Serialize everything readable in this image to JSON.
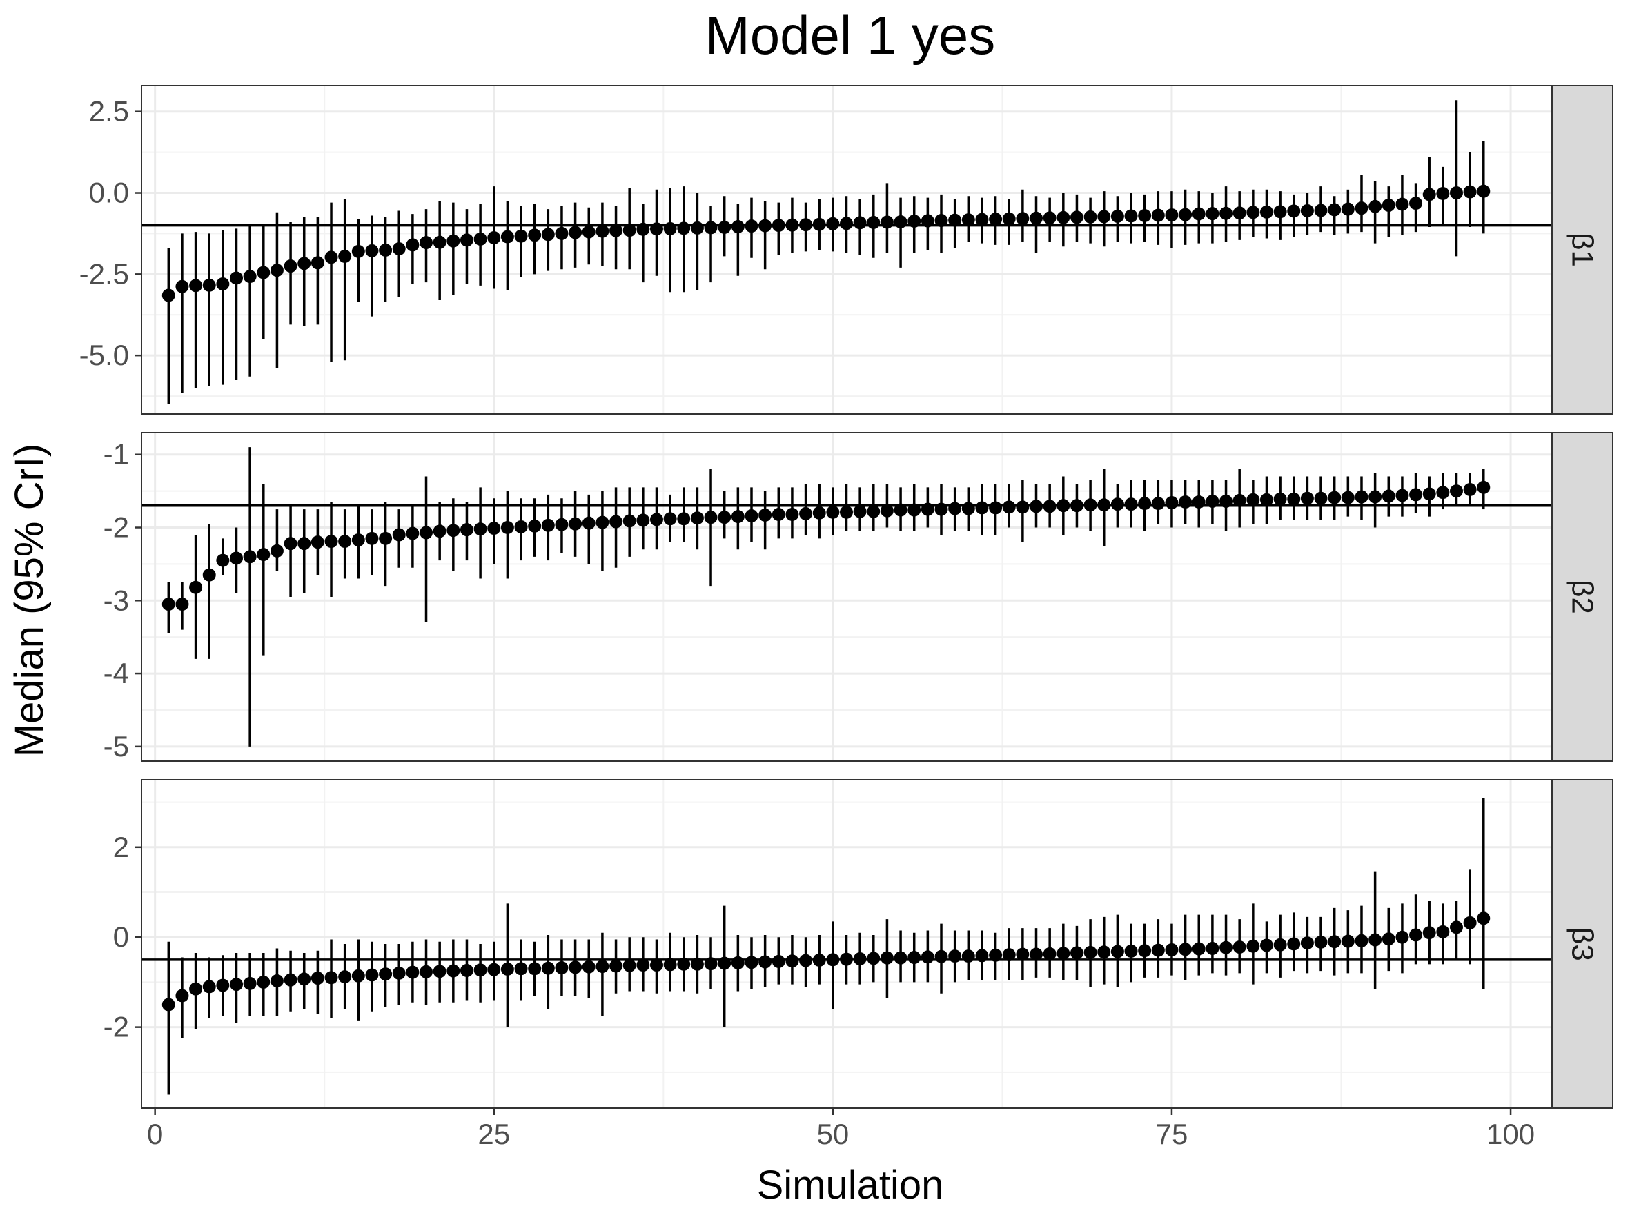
{
  "chart_data": {
    "type": "scatter",
    "title": "Model 1 yes",
    "xlabel": "Simulation",
    "ylabel": "Median (95% CrI)",
    "x": [
      1,
      2,
      3,
      4,
      5,
      6,
      7,
      8,
      9,
      10,
      11,
      12,
      13,
      14,
      15,
      16,
      17,
      18,
      19,
      20,
      21,
      22,
      23,
      24,
      25,
      26,
      27,
      28,
      29,
      30,
      31,
      32,
      33,
      34,
      35,
      36,
      37,
      38,
      39,
      40,
      41,
      42,
      43,
      44,
      45,
      46,
      47,
      48,
      49,
      50,
      51,
      52,
      53,
      54,
      55,
      56,
      57,
      58,
      59,
      60,
      61,
      62,
      63,
      64,
      65,
      66,
      67,
      68,
      69,
      70,
      71,
      72,
      73,
      74,
      75,
      76,
      77,
      78,
      79,
      80,
      81,
      82,
      83,
      84,
      85,
      86,
      87,
      88,
      89,
      90,
      91,
      92,
      93,
      94,
      95,
      96,
      97,
      98
    ],
    "xlim": [
      -1,
      103
    ],
    "xticks": [
      0,
      25,
      50,
      75,
      100
    ],
    "xtick_labels": [
      "0",
      "25",
      "50",
      "75",
      "100"
    ],
    "grid": true,
    "panels": [
      {
        "strip": "β1",
        "ylim": [
          -6.8,
          3.3
        ],
        "yticks": [
          2.5,
          0.0,
          -2.5,
          -5.0
        ],
        "ytick_labels": [
          "2.5",
          "0.0",
          "-2.5",
          "-5.0"
        ],
        "hline": -1.0,
        "median": [
          -3.15,
          -2.88,
          -2.85,
          -2.84,
          -2.8,
          -2.62,
          -2.57,
          -2.45,
          -2.38,
          -2.25,
          -2.17,
          -2.15,
          -1.98,
          -1.95,
          -1.8,
          -1.78,
          -1.76,
          -1.72,
          -1.6,
          -1.53,
          -1.52,
          -1.48,
          -1.45,
          -1.42,
          -1.38,
          -1.35,
          -1.33,
          -1.3,
          -1.28,
          -1.25,
          -1.22,
          -1.2,
          -1.18,
          -1.16,
          -1.15,
          -1.12,
          -1.11,
          -1.1,
          -1.09,
          -1.08,
          -1.07,
          -1.06,
          -1.04,
          -1.02,
          -1.01,
          -1.0,
          -0.99,
          -0.98,
          -0.97,
          -0.95,
          -0.94,
          -0.92,
          -0.91,
          -0.9,
          -0.89,
          -0.87,
          -0.86,
          -0.85,
          -0.84,
          -0.83,
          -0.82,
          -0.81,
          -0.8,
          -0.79,
          -0.78,
          -0.77,
          -0.76,
          -0.75,
          -0.74,
          -0.73,
          -0.72,
          -0.71,
          -0.7,
          -0.69,
          -0.68,
          -0.67,
          -0.65,
          -0.64,
          -0.63,
          -0.62,
          -0.6,
          -0.59,
          -0.58,
          -0.56,
          -0.55,
          -0.54,
          -0.52,
          -0.5,
          -0.47,
          -0.42,
          -0.38,
          -0.35,
          -0.32,
          -0.05,
          -0.02,
          0.0,
          0.03,
          0.05
        ],
        "lower": [
          -6.5,
          -6.15,
          -6.0,
          -5.95,
          -5.9,
          -5.75,
          -5.65,
          -4.5,
          -5.4,
          -4.05,
          -4.1,
          -4.05,
          -5.2,
          -5.15,
          -3.35,
          -3.8,
          -3.35,
          -3.2,
          -2.8,
          -2.75,
          -3.3,
          -3.15,
          -2.8,
          -2.85,
          -2.95,
          -3.0,
          -2.6,
          -2.5,
          -2.4,
          -2.35,
          -2.3,
          -2.2,
          -2.25,
          -2.35,
          -2.35,
          -2.75,
          -2.55,
          -3.05,
          -3.05,
          -3.0,
          -2.75,
          -1.95,
          -2.55,
          -2.0,
          -2.35,
          -1.9,
          -1.85,
          -1.8,
          -1.75,
          -1.8,
          -1.85,
          -1.9,
          -2.0,
          -1.85,
          -2.3,
          -1.85,
          -1.75,
          -1.85,
          -1.7,
          -1.5,
          -1.55,
          -1.6,
          -1.6,
          -1.5,
          -1.85,
          -1.5,
          -1.65,
          -1.5,
          -1.55,
          -1.65,
          -1.5,
          -1.55,
          -1.5,
          -1.6,
          -1.7,
          -1.6,
          -1.55,
          -1.55,
          -1.5,
          -1.45,
          -1.35,
          -1.4,
          -1.45,
          -1.35,
          -1.3,
          -1.2,
          -1.3,
          -1.25,
          -1.2,
          -1.55,
          -1.35,
          -1.3,
          -1.2,
          -1.05,
          -1.0,
          -1.95,
          -1.05,
          -1.25
        ],
        "upper": [
          -1.7,
          -1.25,
          -1.2,
          -1.25,
          -1.15,
          -1.1,
          -0.95,
          -1.0,
          -0.6,
          -0.9,
          -0.75,
          -0.75,
          -0.3,
          -0.2,
          -0.8,
          -0.7,
          -0.75,
          -0.55,
          -0.65,
          -0.5,
          -0.25,
          -0.3,
          -0.5,
          -0.35,
          0.2,
          -0.25,
          -0.4,
          -0.35,
          -0.5,
          -0.4,
          -0.3,
          -0.45,
          -0.3,
          -0.4,
          0.15,
          -0.35,
          0.1,
          0.15,
          0.2,
          0.0,
          -0.4,
          -0.1,
          -0.35,
          -0.15,
          -0.25,
          -0.3,
          -0.15,
          -0.3,
          -0.2,
          -0.15,
          -0.1,
          -0.2,
          -0.05,
          0.3,
          -0.15,
          -0.1,
          -0.15,
          -0.05,
          -0.2,
          -0.1,
          -0.15,
          -0.1,
          -0.2,
          0.1,
          -0.1,
          -0.15,
          0.0,
          -0.05,
          -0.15,
          0.05,
          -0.1,
          0.0,
          -0.05,
          0.05,
          0.05,
          0.1,
          0.05,
          0.0,
          0.2,
          0.05,
          0.1,
          0.1,
          0.05,
          -0.05,
          0.0,
          0.2,
          -0.1,
          0.1,
          0.55,
          0.35,
          0.2,
          0.55,
          0.3,
          1.1,
          0.8,
          2.85,
          1.25,
          1.6
        ]
      },
      {
        "strip": "β2",
        "ylim": [
          -5.2,
          -0.7
        ],
        "yticks": [
          -1,
          -2,
          -3,
          -4,
          -5
        ],
        "ytick_labels": [
          "-1",
          "-2",
          "-3",
          "-4",
          "-5"
        ],
        "hline": -1.7,
        "median": [
          -3.05,
          -3.05,
          -2.82,
          -2.65,
          -2.45,
          -2.42,
          -2.4,
          -2.37,
          -2.32,
          -2.22,
          -2.22,
          -2.2,
          -2.19,
          -2.19,
          -2.17,
          -2.15,
          -2.15,
          -2.1,
          -2.08,
          -2.07,
          -2.05,
          -2.04,
          -2.03,
          -2.02,
          -2.01,
          -2.0,
          -1.99,
          -1.98,
          -1.97,
          -1.96,
          -1.95,
          -1.94,
          -1.93,
          -1.92,
          -1.91,
          -1.9,
          -1.89,
          -1.88,
          -1.88,
          -1.87,
          -1.86,
          -1.86,
          -1.85,
          -1.84,
          -1.83,
          -1.82,
          -1.82,
          -1.81,
          -1.8,
          -1.79,
          -1.79,
          -1.78,
          -1.78,
          -1.77,
          -1.76,
          -1.76,
          -1.75,
          -1.75,
          -1.74,
          -1.74,
          -1.73,
          -1.73,
          -1.72,
          -1.72,
          -1.71,
          -1.71,
          -1.7,
          -1.7,
          -1.69,
          -1.69,
          -1.68,
          -1.68,
          -1.67,
          -1.67,
          -1.66,
          -1.65,
          -1.65,
          -1.64,
          -1.64,
          -1.63,
          -1.62,
          -1.62,
          -1.61,
          -1.61,
          -1.6,
          -1.6,
          -1.59,
          -1.59,
          -1.58,
          -1.58,
          -1.57,
          -1.56,
          -1.55,
          -1.54,
          -1.52,
          -1.5,
          -1.48,
          -1.45
        ],
        "lower": [
          -3.45,
          -3.4,
          -3.8,
          -3.8,
          -2.65,
          -2.9,
          -5.0,
          -3.75,
          -2.6,
          -2.95,
          -2.9,
          -2.65,
          -2.95,
          -2.7,
          -2.7,
          -2.65,
          -2.8,
          -2.55,
          -2.55,
          -3.3,
          -2.45,
          -2.6,
          -2.45,
          -2.7,
          -2.5,
          -2.7,
          -2.45,
          -2.4,
          -2.45,
          -2.35,
          -2.4,
          -2.5,
          -2.6,
          -2.55,
          -2.4,
          -2.3,
          -2.3,
          -2.2,
          -2.2,
          -2.3,
          -2.8,
          -2.15,
          -2.3,
          -2.2,
          -2.3,
          -2.15,
          -2.15,
          -2.1,
          -2.15,
          -2.1,
          -2.05,
          -2.05,
          -2.05,
          -2.0,
          -2.05,
          -2.05,
          -2.0,
          -2.1,
          -2.05,
          -2.05,
          -2.1,
          -2.1,
          -2.0,
          -2.2,
          -2.0,
          -2.0,
          -2.1,
          -2.0,
          -2.05,
          -2.25,
          -2.0,
          -2.0,
          -2.05,
          -1.95,
          -2.0,
          -1.95,
          -2.0,
          -1.95,
          -2.05,
          -2.0,
          -1.95,
          -1.95,
          -1.9,
          -1.9,
          -1.9,
          -1.9,
          -1.9,
          -1.85,
          -1.9,
          -2.0,
          -1.85,
          -1.85,
          -1.8,
          -1.85,
          -1.75,
          -1.7,
          -1.7,
          -1.75
        ],
        "upper": [
          -2.75,
          -2.75,
          -2.1,
          -1.95,
          -2.15,
          -2.0,
          -0.9,
          -1.4,
          -1.75,
          -1.7,
          -1.75,
          -1.75,
          -1.65,
          -1.75,
          -1.7,
          -1.75,
          -1.65,
          -1.75,
          -1.7,
          -1.3,
          -1.65,
          -1.6,
          -1.65,
          -1.45,
          -1.6,
          -1.5,
          -1.6,
          -1.6,
          -1.55,
          -1.6,
          -1.5,
          -1.55,
          -1.5,
          -1.45,
          -1.45,
          -1.45,
          -1.45,
          -1.55,
          -1.45,
          -1.45,
          -1.2,
          -1.5,
          -1.45,
          -1.45,
          -1.5,
          -1.45,
          -1.45,
          -1.4,
          -1.4,
          -1.45,
          -1.4,
          -1.45,
          -1.4,
          -1.4,
          -1.45,
          -1.4,
          -1.45,
          -1.4,
          -1.45,
          -1.45,
          -1.4,
          -1.4,
          -1.4,
          -1.35,
          -1.4,
          -1.4,
          -1.3,
          -1.4,
          -1.35,
          -1.2,
          -1.4,
          -1.35,
          -1.35,
          -1.35,
          -1.35,
          -1.35,
          -1.35,
          -1.35,
          -1.35,
          -1.2,
          -1.35,
          -1.3,
          -1.3,
          -1.3,
          -1.3,
          -1.3,
          -1.3,
          -1.3,
          -1.3,
          -1.25,
          -1.3,
          -1.3,
          -1.25,
          -1.3,
          -1.25,
          -1.25,
          -1.25,
          -1.2
        ]
      },
      {
        "strip": "β3",
        "ylim": [
          -3.8,
          3.5
        ],
        "yticks": [
          2,
          0,
          -2
        ],
        "ytick_labels": [
          "2",
          "0",
          "-2"
        ],
        "hline": -0.5,
        "median": [
          -1.5,
          -1.3,
          -1.15,
          -1.1,
          -1.07,
          -1.05,
          -1.03,
          -1.0,
          -0.97,
          -0.95,
          -0.93,
          -0.91,
          -0.9,
          -0.88,
          -0.86,
          -0.84,
          -0.82,
          -0.8,
          -0.78,
          -0.77,
          -0.76,
          -0.75,
          -0.74,
          -0.73,
          -0.72,
          -0.71,
          -0.7,
          -0.7,
          -0.69,
          -0.68,
          -0.67,
          -0.66,
          -0.65,
          -0.64,
          -0.63,
          -0.62,
          -0.62,
          -0.61,
          -0.6,
          -0.6,
          -0.59,
          -0.58,
          -0.57,
          -0.56,
          -0.55,
          -0.54,
          -0.53,
          -0.52,
          -0.51,
          -0.5,
          -0.49,
          -0.48,
          -0.47,
          -0.46,
          -0.46,
          -0.45,
          -0.44,
          -0.43,
          -0.42,
          -0.42,
          -0.41,
          -0.4,
          -0.39,
          -0.38,
          -0.38,
          -0.37,
          -0.36,
          -0.35,
          -0.34,
          -0.33,
          -0.32,
          -0.31,
          -0.3,
          -0.29,
          -0.28,
          -0.27,
          -0.26,
          -0.25,
          -0.23,
          -0.22,
          -0.2,
          -0.18,
          -0.17,
          -0.15,
          -0.13,
          -0.11,
          -0.1,
          -0.09,
          -0.08,
          -0.06,
          -0.04,
          0.0,
          0.05,
          0.1,
          0.12,
          0.22,
          0.32,
          0.42
        ],
        "lower": [
          -3.5,
          -2.25,
          -2.05,
          -1.8,
          -1.75,
          -1.9,
          -1.75,
          -1.75,
          -1.75,
          -1.65,
          -1.6,
          -1.7,
          -1.8,
          -1.6,
          -1.85,
          -1.65,
          -1.55,
          -1.5,
          -1.45,
          -1.5,
          -1.45,
          -1.45,
          -1.4,
          -1.45,
          -1.4,
          -2.0,
          -1.4,
          -1.3,
          -1.6,
          -1.3,
          -1.3,
          -1.35,
          -1.75,
          -1.25,
          -1.2,
          -1.2,
          -1.25,
          -1.2,
          -1.2,
          -1.25,
          -1.15,
          -2.0,
          -1.2,
          -1.15,
          -1.1,
          -1.05,
          -1.05,
          -1.1,
          -1.05,
          -1.6,
          -1.05,
          -1.05,
          -1.0,
          -1.35,
          -1.0,
          -1.0,
          -1.0,
          -1.25,
          -1.0,
          -0.95,
          -0.95,
          -0.95,
          -0.95,
          -0.95,
          -0.9,
          -0.9,
          -0.95,
          -0.95,
          -1.1,
          -1.05,
          -1.1,
          -1.0,
          -0.9,
          -0.9,
          -0.85,
          -0.95,
          -0.85,
          -0.8,
          -0.85,
          -0.8,
          -1.05,
          -0.8,
          -0.9,
          -0.75,
          -0.8,
          -0.75,
          -0.85,
          -0.8,
          -0.8,
          -1.15,
          -0.75,
          -0.8,
          -0.6,
          -0.6,
          -0.6,
          -0.5,
          -0.6,
          -1.15
        ],
        "upper": [
          -0.1,
          -0.45,
          -0.35,
          -0.45,
          -0.4,
          -0.35,
          -0.35,
          -0.35,
          -0.25,
          -0.3,
          -0.35,
          -0.3,
          -0.05,
          -0.15,
          -0.05,
          -0.1,
          -0.15,
          -0.15,
          -0.1,
          -0.05,
          -0.1,
          -0.05,
          -0.05,
          -0.15,
          -0.1,
          0.75,
          -0.05,
          -0.1,
          0.05,
          -0.05,
          -0.05,
          -0.05,
          0.1,
          -0.05,
          0.0,
          0.0,
          -0.05,
          0.1,
          0.0,
          0.05,
          0.0,
          0.7,
          0.05,
          0.0,
          0.05,
          0.0,
          0.05,
          0.0,
          0.05,
          0.35,
          0.05,
          0.1,
          0.05,
          0.4,
          0.15,
          0.1,
          0.15,
          0.3,
          0.15,
          0.15,
          0.15,
          0.1,
          0.2,
          0.2,
          0.2,
          0.2,
          0.3,
          0.25,
          0.4,
          0.45,
          0.5,
          0.3,
          0.3,
          0.4,
          0.3,
          0.5,
          0.5,
          0.5,
          0.5,
          0.4,
          0.75,
          0.35,
          0.5,
          0.55,
          0.45,
          0.45,
          0.65,
          0.6,
          0.7,
          1.45,
          0.65,
          0.75,
          0.95,
          0.8,
          0.75,
          0.8,
          1.5,
          3.1
        ]
      }
    ]
  }
}
